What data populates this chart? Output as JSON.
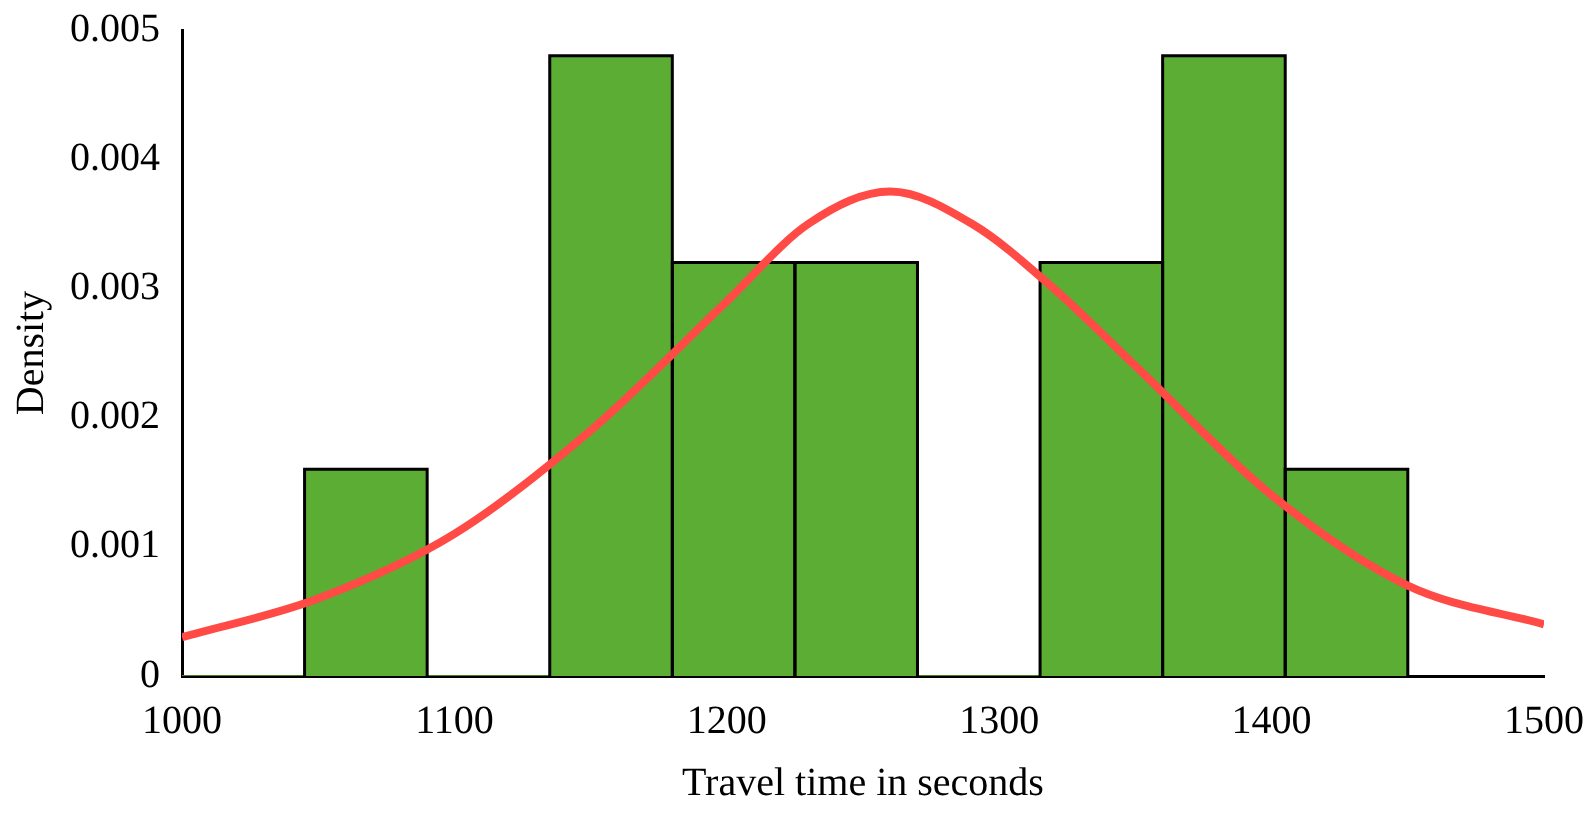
{
  "chart_data": {
    "type": "histogram",
    "xlabel": "Travel time in seconds",
    "ylabel": "Density",
    "bins": [
      1000,
      1045,
      1090,
      1135,
      1180,
      1225,
      1270,
      1315,
      1360,
      1405,
      1450
    ],
    "values": [
      0,
      0.0016,
      0,
      0.0048,
      0.0032,
      0.0032,
      0,
      0.0032,
      0.0048,
      0.0016
    ],
    "color": "#5cad34",
    "series": [
      {
        "type": "line",
        "color": "#ff4a45",
        "x": [
          1000,
          1050,
          1100,
          1150,
          1200,
          1230,
          1260,
          1290,
          1320,
          1350,
          1400,
          1450,
          1500
        ],
        "values": [
          0.0003,
          0.0006,
          0.0011,
          0.0019,
          0.0029,
          0.0035,
          0.00375,
          0.0035,
          0.003,
          0.0024,
          0.0014,
          0.0007,
          0.0004
        ]
      }
    ],
    "xlim": [
      1000,
      1500
    ],
    "xticks": [
      1000,
      1100,
      1200,
      1300,
      1400,
      1500
    ],
    "ylim": [
      0,
      0.005
    ],
    "yticks": [
      0,
      0.001,
      0.002,
      0.003,
      0.004,
      0.005
    ],
    "grid": false,
    "legend": false
  }
}
